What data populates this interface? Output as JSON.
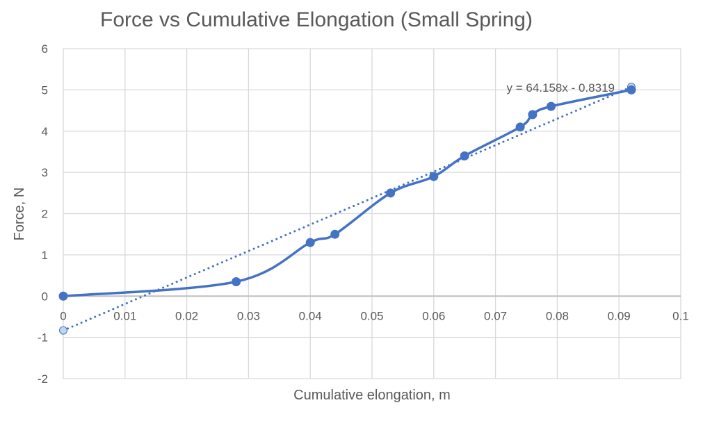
{
  "chart_data": {
    "type": "scatter",
    "title": "Force vs Cumulative Elongation (Small Spring)",
    "xlabel": "Cumulative elongation, m",
    "ylabel": "Force, N",
    "xlim": [
      0,
      0.1
    ],
    "ylim": [
      -2,
      6
    ],
    "xticks": [
      "0",
      "0.01",
      "0.02",
      "0.03",
      "0.04",
      "0.05",
      "0.06",
      "0.07",
      "0.08",
      "0.09",
      "0.1"
    ],
    "yticks": [
      "-2",
      "-1",
      "0",
      "1",
      "2",
      "3",
      "4",
      "5",
      "6"
    ],
    "grid": true,
    "series": [
      {
        "x": [
          0,
          0.028,
          0.04,
          0.044,
          0.053,
          0.06,
          0.065,
          0.074,
          0.076,
          0.079,
          0.092
        ],
        "y": [
          0,
          0.35,
          1.3,
          1.5,
          2.5,
          2.9,
          3.4,
          4.1,
          4.4,
          4.6,
          5.0
        ],
        "line": "smooth",
        "color": "#4472C4"
      }
    ],
    "trendline": {
      "type": "linear",
      "slope": 64.158,
      "intercept": -0.8319,
      "x_range": [
        0,
        0.092
      ],
      "label": "y = 64.158x - 0.8319",
      "color": "#4472C4",
      "endpoint_color": "#BDD7EE"
    }
  }
}
